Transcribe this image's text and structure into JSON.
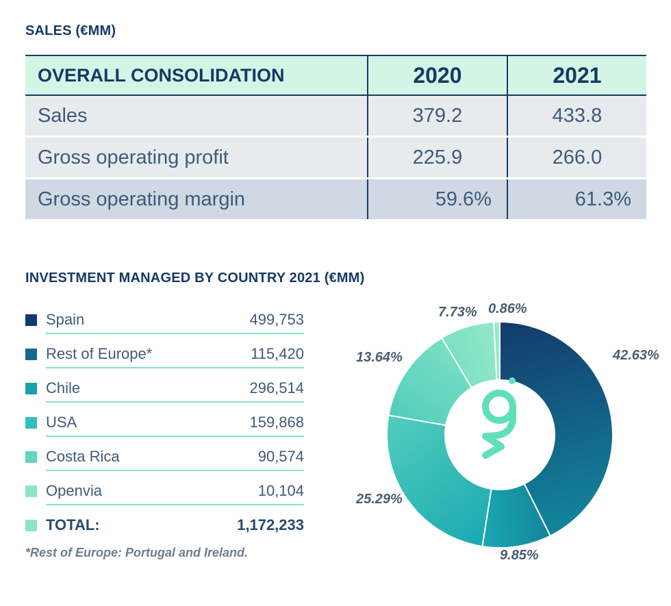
{
  "sales": {
    "title": "SALES (€MM)",
    "header": {
      "label": "OVERALL CONSOLIDATION",
      "y2020": "2020",
      "y2021": "2021"
    },
    "rows": [
      {
        "label": "Sales",
        "y2020": "379.2",
        "y2021": "433.8"
      },
      {
        "label": "Gross operating profit",
        "y2020": "225.9",
        "y2021": "266.0"
      },
      {
        "label": "Gross operating margin",
        "y2020": "59.6%",
        "y2021": "61.3%"
      }
    ]
  },
  "investment": {
    "title": "INVESTMENT MANAGED BY COUNTRY 2021 (€MM)",
    "items": [
      {
        "name": "Spain",
        "value": "499,753",
        "color": "#133a6b"
      },
      {
        "name": "Rest of Europe*",
        "value": "115,420",
        "color": "#136a8e"
      },
      {
        "name": "Chile",
        "value": "296,514",
        "color": "#1aa1ae"
      },
      {
        "name": "USA",
        "value": "159,868",
        "color": "#33c0bc"
      },
      {
        "name": "Costa Rica",
        "value": "90,574",
        "color": "#63d6bd"
      },
      {
        "name": "Openvia",
        "value": "10,104",
        "color": "#8ce6c6"
      }
    ],
    "total": {
      "name": "TOTAL:",
      "value": "1,172,233",
      "color": "#8ce6c6"
    },
    "footnote": "*Rest of Europe: Portugal and Ireland."
  },
  "chart_data": {
    "type": "pie",
    "variant": "donut",
    "title": "INVESTMENT MANAGED BY COUNTRY 2021 (€MM)",
    "categories": [
      "Spain",
      "Rest of Europe*",
      "Chile",
      "USA",
      "Costa Rica",
      "Openvia"
    ],
    "values": [
      42.63,
      9.85,
      25.29,
      13.64,
      7.73,
      0.86
    ],
    "labels": [
      "42.63%",
      "9.85%",
      "25.29%",
      "13.64%",
      "7.73%",
      "0.86%"
    ],
    "colors": [
      "#133a6b",
      "#136a8e",
      "#1aa1ae",
      "#33c0bc",
      "#63d6bd",
      "#8ce6c6"
    ],
    "gradients": [
      [
        "#133a6b",
        "#13869c"
      ],
      [
        "#13869c",
        "#1aa9b2"
      ],
      [
        "#1aa9b2",
        "#52cdbd"
      ],
      [
        "#52cdbd",
        "#7bdfc3"
      ],
      [
        "#7bdfc3",
        "#93e8c8"
      ],
      [
        "#93e8c8",
        "#9aeacb"
      ]
    ],
    "center_icon": "brand-logo-icon"
  }
}
